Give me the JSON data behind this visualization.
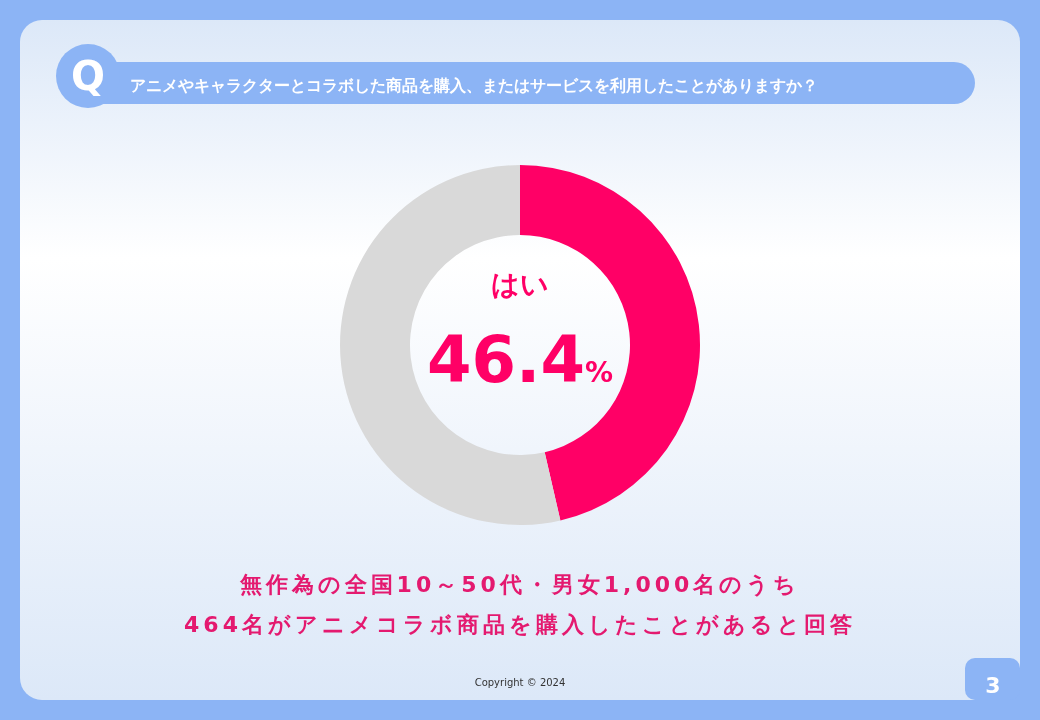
{
  "chart_data": {
    "type": "donut",
    "title": "アニメやキャラクターとコラボした商品を購入、またはサービスを利用したことがありますか？",
    "categories": [
      "はい",
      null
    ],
    "values": [
      46.4,
      53.6
    ],
    "colors": [
      "#ff0066",
      "#d9d9d9"
    ],
    "value_labels": [
      "46.4%",
      null
    ],
    "annotations": [
      "Q",
      "無作為の全国10～50代・男女1,000名のうち",
      "464名がアニメコラボ商品を購入したことがあると回答",
      "Copyright © 2024",
      "3"
    ]
  }
}
